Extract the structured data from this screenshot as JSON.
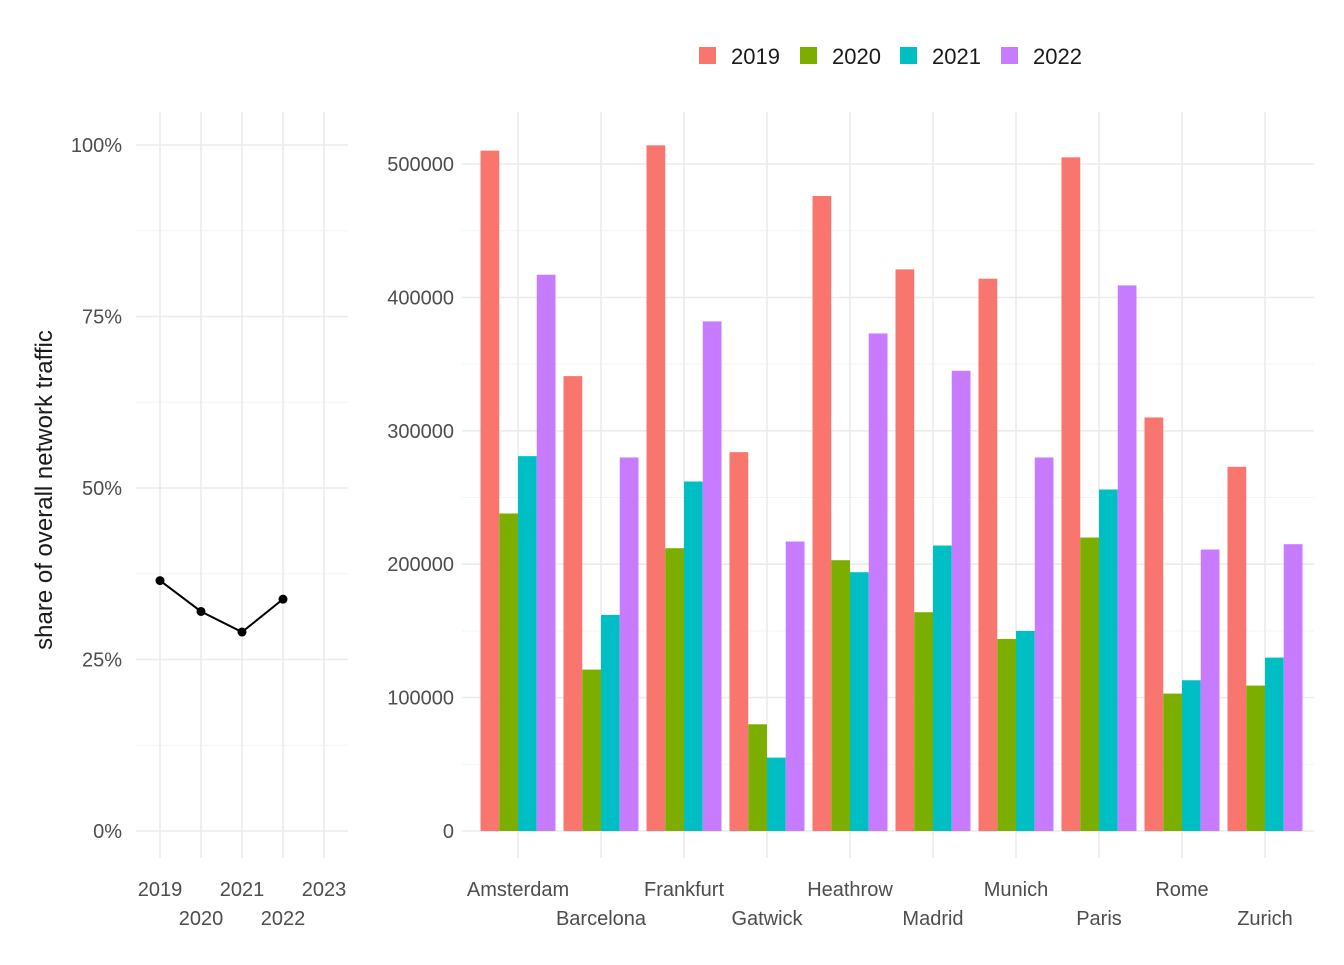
{
  "chart_data": [
    {
      "type": "line",
      "x": [
        2019,
        2020,
        2021,
        2022
      ],
      "values": [
        0.365,
        0.32,
        0.29,
        0.338
      ],
      "ylabel": "share of overall network traffic",
      "xlabel": "",
      "xlim": [
        2019,
        2023
      ],
      "ylim": [
        0,
        1
      ],
      "x_ticks": [
        "2019",
        "2020",
        "2021",
        "2022",
        "2023"
      ],
      "y_ticks": [
        0,
        0.25,
        0.5,
        0.75,
        1
      ],
      "y_tick_labels": [
        "0%",
        "25%",
        "50%",
        "75%",
        "100%"
      ],
      "line_color": "#000000",
      "grid": true
    },
    {
      "type": "bar",
      "categories": [
        "Amsterdam",
        "Barcelona",
        "Frankfurt",
        "Gatwick",
        "Heathrow",
        "Madrid",
        "Munich",
        "Paris",
        "Rome",
        "Zurich"
      ],
      "series": [
        {
          "name": "2019",
          "color": "#F8766D",
          "values": [
            510000,
            341000,
            514000,
            284000,
            476000,
            421000,
            414000,
            505000,
            310000,
            273000
          ]
        },
        {
          "name": "2020",
          "color": "#7CAE00",
          "values": [
            238000,
            121000,
            212000,
            80000,
            203000,
            164000,
            144000,
            220000,
            103000,
            109000
          ]
        },
        {
          "name": "2021",
          "color": "#00BFC4",
          "values": [
            281000,
            162000,
            262000,
            55000,
            194000,
            214000,
            150000,
            256000,
            113000,
            130000
          ]
        },
        {
          "name": "2022",
          "color": "#C77CFF",
          "values": [
            417000,
            280000,
            382000,
            217000,
            373000,
            345000,
            280000,
            409000,
            211000,
            215000
          ]
        }
      ],
      "ylim": [
        0,
        535000
      ],
      "y_ticks": [
        0,
        100000,
        200000,
        300000,
        400000,
        500000
      ],
      "y_tick_labels": [
        "0",
        "100000",
        "200000",
        "300000",
        "400000",
        "500000"
      ],
      "xlabel": "",
      "ylabel": "",
      "legend_position": "top",
      "grid": true
    }
  ]
}
